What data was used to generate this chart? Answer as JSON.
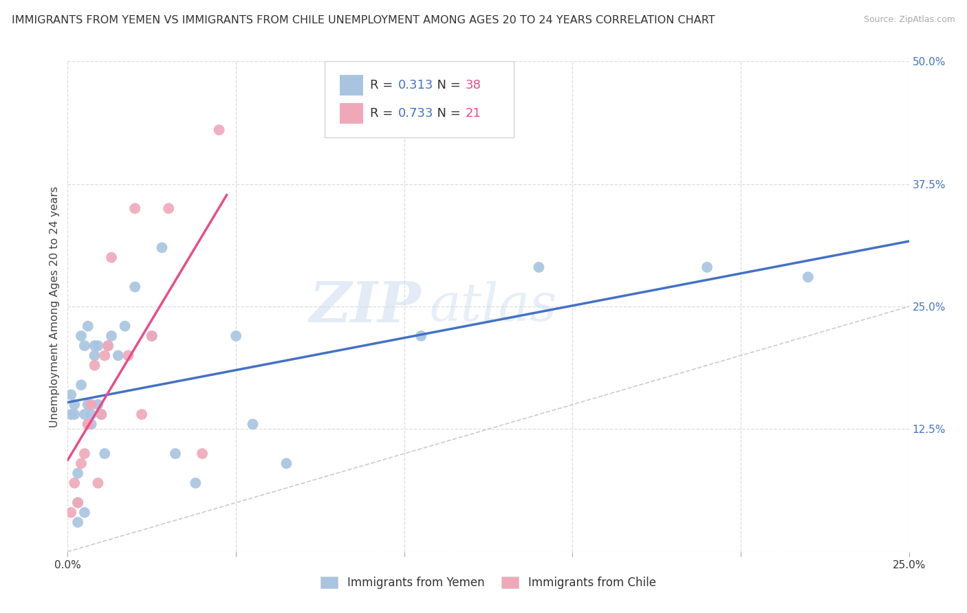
{
  "title": "IMMIGRANTS FROM YEMEN VS IMMIGRANTS FROM CHILE UNEMPLOYMENT AMONG AGES 20 TO 24 YEARS CORRELATION CHART",
  "source": "Source: ZipAtlas.com",
  "ylabel": "Unemployment Among Ages 20 to 24 years",
  "xlim": [
    0.0,
    0.25
  ],
  "ylim": [
    0.0,
    0.5
  ],
  "xticks": [
    0.0,
    0.05,
    0.1,
    0.15,
    0.2,
    0.25
  ],
  "xticklabels": [
    "0.0%",
    "",
    "",
    "",
    "",
    "25.0%"
  ],
  "yticks": [
    0.0,
    0.125,
    0.25,
    0.375,
    0.5
  ],
  "yticklabels": [
    "",
    "12.5%",
    "25.0%",
    "37.5%",
    "50.0%"
  ],
  "yemen_color": "#a8c4e0",
  "chile_color": "#f0a8b8",
  "yemen_R": 0.313,
  "yemen_N": 38,
  "chile_R": 0.733,
  "chile_N": 21,
  "legend_label_yemen": "Immigrants from Yemen",
  "legend_label_chile": "Immigrants from Chile",
  "diag_line_color": "#cccccc",
  "yemen_line_color": "#4472c4",
  "chile_line_color": "#e84c8b",
  "watermark_zip": "ZIP",
  "watermark_atlas": "atlas",
  "background_color": "#ffffff",
  "grid_color": "#dddddd",
  "yemen_x": [
    0.001,
    0.001,
    0.002,
    0.002,
    0.003,
    0.003,
    0.003,
    0.004,
    0.004,
    0.005,
    0.005,
    0.005,
    0.006,
    0.006,
    0.007,
    0.007,
    0.008,
    0.008,
    0.009,
    0.009,
    0.01,
    0.011,
    0.012,
    0.013,
    0.015,
    0.017,
    0.02,
    0.025,
    0.028,
    0.032,
    0.038,
    0.05,
    0.105,
    0.14,
    0.19,
    0.22,
    0.055,
    0.065
  ],
  "yemen_y": [
    0.16,
    0.14,
    0.15,
    0.14,
    0.05,
    0.08,
    0.03,
    0.17,
    0.22,
    0.14,
    0.21,
    0.04,
    0.15,
    0.23,
    0.13,
    0.14,
    0.21,
    0.2,
    0.21,
    0.15,
    0.14,
    0.1,
    0.21,
    0.22,
    0.2,
    0.23,
    0.27,
    0.22,
    0.31,
    0.1,
    0.07,
    0.22,
    0.22,
    0.29,
    0.29,
    0.28,
    0.13,
    0.09
  ],
  "chile_x": [
    0.001,
    0.002,
    0.003,
    0.004,
    0.005,
    0.006,
    0.006,
    0.007,
    0.008,
    0.009,
    0.01,
    0.011,
    0.012,
    0.013,
    0.018,
    0.02,
    0.022,
    0.025,
    0.03,
    0.04,
    0.045
  ],
  "chile_y": [
    0.04,
    0.07,
    0.05,
    0.09,
    0.1,
    0.13,
    0.13,
    0.15,
    0.19,
    0.07,
    0.14,
    0.2,
    0.21,
    0.3,
    0.2,
    0.35,
    0.14,
    0.22,
    0.35,
    0.1,
    0.43
  ],
  "R_color": "#4472c4",
  "N_color": "#e84c8b"
}
